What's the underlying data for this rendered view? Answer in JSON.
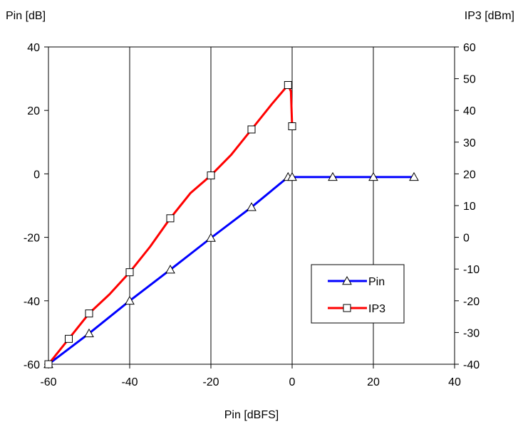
{
  "chart_data": {
    "type": "line",
    "xlabel": "Pin [dBFS]",
    "ylabel": "Pin [dB]",
    "y2label": "IP3 [dBm]",
    "xlim": [
      -60,
      40
    ],
    "ylim": [
      -60,
      40
    ],
    "y2lim": [
      -40,
      60
    ],
    "xticks": [
      -60,
      -40,
      -20,
      0,
      20,
      40
    ],
    "yticks": [
      -60,
      -40,
      -20,
      0,
      20,
      40
    ],
    "y2ticks": [
      -40,
      -30,
      -20,
      -10,
      0,
      10,
      20,
      30,
      40,
      50,
      60
    ],
    "grid": "vertical",
    "legend_position": "bottom-right",
    "series": [
      {
        "name": "Pin",
        "axis": "left",
        "color": "#0000ff",
        "marker": "triangle",
        "x": [
          -60,
          -50,
          -40,
          -30,
          -20,
          -10,
          -1,
          0,
          10,
          20,
          30
        ],
        "y": [
          -60,
          -50.3,
          -40,
          -30.2,
          -20.2,
          -10.5,
          -1,
          -1,
          -1,
          -1,
          -1
        ]
      },
      {
        "name": "IP3",
        "axis": "right",
        "color": "#ff0000",
        "marker": "square",
        "x": [
          -60,
          -55,
          -50,
          -45,
          -40,
          -35,
          -30,
          -25,
          -20,
          -15,
          -10,
          -5,
          -1,
          -0.3,
          0
        ],
        "y": [
          -40,
          -32,
          -24,
          -18,
          -11,
          -3,
          6,
          14,
          19.5,
          26,
          34,
          42,
          48,
          46,
          35
        ]
      }
    ],
    "series_markers": {
      "Pin": [
        true,
        true,
        true,
        true,
        true,
        true,
        true,
        true,
        true,
        true,
        true
      ],
      "IP3": [
        true,
        true,
        true,
        false,
        true,
        false,
        true,
        false,
        true,
        false,
        true,
        false,
        true,
        false,
        true
      ]
    }
  }
}
